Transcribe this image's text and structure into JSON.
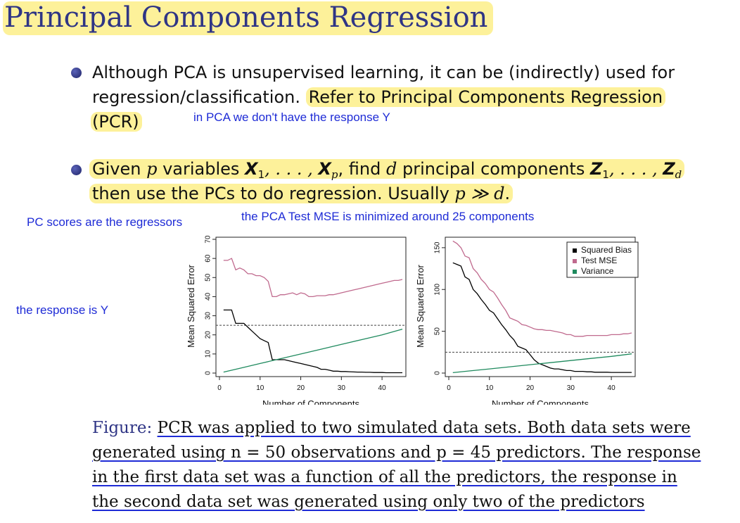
{
  "slide": {
    "title": "Principal Components Regression",
    "bullet1": {
      "line1": "Although PCA is unsupervised learning, it can be (indirectly) used for",
      "line2_plain": "regression/classification. ",
      "line2_hl": "Refer to Principal Components Regression",
      "line3_hl": "(PCR)"
    },
    "bullet2": {
      "given": "Given ",
      "p": "p",
      "variables": " variables ",
      "X": "X",
      "sub1": "1",
      "dots": ", . . . , ",
      "subp": "p",
      "find": ", find ",
      "d": "d",
      "principal": " principal components ",
      "Z": "Z",
      "subd": "d",
      "line2": "then use the PCs to do regression. Usually ",
      "pgg": "p ≫ d",
      "period": "."
    },
    "caption": {
      "label": "Figure: ",
      "line1": "PCR was applied to two simulated data sets. Both data sets were",
      "line2": "generated using n = 50 observations and p = 45 predictors. The response",
      "line3": "in the first data set was a function of all the predictors, the response in",
      "line4": "the second data set was generated using only two of the predictors"
    }
  },
  "annotations": {
    "no_response": "in PCA we don't have the response Y",
    "pc_scores": "PC scores are the regressors",
    "min_mse": "the PCA Test MSE is minimized around 25 components",
    "response_y": "the response is Y"
  },
  "colors": {
    "squared_bias": "#000000",
    "test_mse": "#c06a8e",
    "variance": "#1f8a5e",
    "highlight": "#fdf19a",
    "annotation": "#1e2bd6",
    "title": "#2f3585"
  },
  "chart_data": [
    {
      "type": "line",
      "title": "",
      "xlabel": "Number of Components",
      "ylabel": "Mean Squared Error",
      "xlim": [
        0,
        45
      ],
      "ylim": [
        0,
        70
      ],
      "xticks": [
        0,
        10,
        20,
        30,
        40
      ],
      "yticks": [
        0,
        10,
        20,
        30,
        40,
        50,
        60,
        70
      ],
      "reference_line": 25,
      "series": [
        {
          "name": "Squared Bias",
          "color": "#000000",
          "x": [
            1,
            2,
            3,
            4,
            5,
            6,
            7,
            8,
            9,
            10,
            11,
            12,
            13,
            14,
            15,
            16,
            17,
            18,
            19,
            20,
            21,
            22,
            23,
            24,
            25,
            26,
            27,
            28,
            29,
            30,
            31,
            32,
            33,
            34,
            35,
            36,
            37,
            38,
            39,
            40,
            41,
            42,
            43,
            44,
            45
          ],
          "y": [
            33,
            33,
            33,
            26,
            26,
            26,
            24,
            22,
            20,
            18,
            17,
            16,
            7,
            7,
            7,
            7,
            6.5,
            6,
            5.5,
            5,
            4.5,
            4,
            3.5,
            3,
            2,
            2,
            1.5,
            1,
            1,
            0.8,
            0.8,
            0.7,
            0.6,
            0.5,
            0.5,
            0.4,
            0.4,
            0.3,
            0.3,
            0.3,
            0.2,
            0.2,
            0.2,
            0.2,
            0.2
          ]
        },
        {
          "name": "Test MSE",
          "color": "#c06a8e",
          "x": [
            1,
            2,
            3,
            4,
            5,
            6,
            7,
            8,
            9,
            10,
            11,
            12,
            13,
            14,
            15,
            16,
            17,
            18,
            19,
            20,
            21,
            22,
            23,
            24,
            25,
            26,
            27,
            28,
            29,
            30,
            31,
            32,
            33,
            34,
            35,
            36,
            37,
            38,
            39,
            40,
            41,
            42,
            43,
            44,
            45
          ],
          "y": [
            59,
            59,
            60,
            54,
            55,
            54,
            52,
            52,
            51,
            51,
            50,
            48,
            40,
            40,
            41,
            41,
            41.5,
            42,
            41,
            42,
            41.5,
            40,
            40,
            40.5,
            40.5,
            40.5,
            41,
            41,
            41.5,
            42,
            42.5,
            43,
            43.5,
            44,
            44.5,
            45,
            45.5,
            46,
            46.5,
            47,
            47.5,
            48,
            48.5,
            48.5,
            49
          ]
        },
        {
          "name": "Variance",
          "color": "#1f8a5e",
          "x": [
            1,
            5,
            10,
            15,
            20,
            25,
            30,
            35,
            40,
            45
          ],
          "y": [
            0.5,
            2.5,
            5,
            7.5,
            10,
            12.5,
            15,
            17.5,
            20,
            23
          ]
        }
      ]
    },
    {
      "type": "line",
      "title": "",
      "xlabel": "Number of Components",
      "ylabel": "Mean Squared Error",
      "xlim": [
        0,
        45
      ],
      "ylim": [
        0,
        160
      ],
      "xticks": [
        0,
        10,
        20,
        30,
        40
      ],
      "yticks": [
        0,
        50,
        100,
        150
      ],
      "reference_line": 25,
      "legend": "top-right",
      "series": [
        {
          "name": "Squared Bias",
          "color": "#000000",
          "x": [
            1,
            2,
            3,
            4,
            5,
            6,
            7,
            8,
            9,
            10,
            11,
            12,
            13,
            14,
            15,
            16,
            17,
            18,
            19,
            20,
            21,
            22,
            23,
            24,
            25,
            26,
            27,
            28,
            29,
            30,
            31,
            32,
            33,
            34,
            35,
            36,
            37,
            38,
            39,
            40,
            41,
            42,
            43,
            44,
            45
          ],
          "y": [
            132,
            130,
            128,
            115,
            112,
            100,
            95,
            88,
            82,
            75,
            72,
            65,
            58,
            52,
            45,
            40,
            32,
            30,
            28,
            22,
            16,
            12,
            10,
            8,
            6,
            5,
            5,
            4,
            3,
            3,
            2,
            2,
            2,
            1.5,
            1.5,
            1,
            1,
            1,
            1,
            0.8,
            0.8,
            0.8,
            0.8,
            0.8,
            0.8
          ]
        },
        {
          "name": "Test MSE",
          "color": "#c06a8e",
          "x": [
            1,
            2,
            3,
            4,
            5,
            6,
            7,
            8,
            9,
            10,
            11,
            12,
            13,
            14,
            15,
            16,
            17,
            18,
            19,
            20,
            21,
            22,
            23,
            24,
            25,
            26,
            27,
            28,
            29,
            30,
            31,
            32,
            33,
            34,
            35,
            36,
            37,
            38,
            39,
            40,
            41,
            42,
            43,
            44,
            45
          ],
          "y": [
            158,
            155,
            150,
            140,
            138,
            125,
            120,
            112,
            107,
            100,
            97,
            90,
            82,
            75,
            66,
            64,
            62,
            58,
            57,
            55,
            53,
            52,
            52,
            51,
            51,
            50,
            49,
            48,
            46,
            46,
            44,
            44,
            44,
            45,
            45,
            45,
            45,
            45,
            45,
            46,
            46,
            46,
            47,
            47,
            48
          ]
        },
        {
          "name": "Variance",
          "color": "#1f8a5e",
          "x": [
            1,
            5,
            10,
            15,
            20,
            25,
            30,
            35,
            40,
            45
          ],
          "y": [
            0.5,
            2.5,
            5,
            7.5,
            10,
            12.5,
            15,
            17.5,
            20,
            23
          ]
        }
      ]
    }
  ]
}
